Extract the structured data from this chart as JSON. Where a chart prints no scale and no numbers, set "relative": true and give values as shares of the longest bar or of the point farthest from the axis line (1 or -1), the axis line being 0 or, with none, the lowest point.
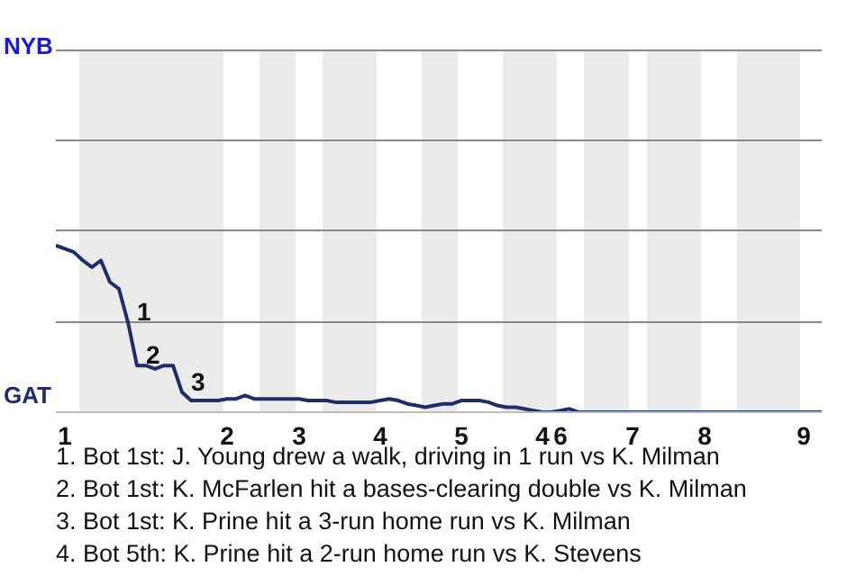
{
  "chart_data": {
    "type": "line",
    "relative": true,
    "categories": [
      null,
      "1",
      null,
      null,
      null,
      null,
      null,
      null,
      null,
      null,
      null,
      null,
      null,
      null,
      null,
      null,
      null,
      null,
      null,
      "2",
      null,
      null,
      null,
      null,
      null,
      null,
      null,
      "3",
      null,
      null,
      null,
      null,
      null,
      null,
      null,
      null,
      "4",
      null,
      null,
      null,
      null,
      null,
      null,
      null,
      null,
      "5",
      null,
      null,
      null,
      null,
      null,
      null,
      null,
      null,
      "4",
      null,
      "6",
      null,
      null,
      null,
      null,
      null,
      null,
      null,
      "7",
      null,
      null,
      null,
      null,
      null,
      null,
      null,
      "8",
      null,
      null,
      null,
      null,
      null,
      null,
      null,
      null,
      null,
      null,
      "9",
      null,
      null
    ],
    "series": [
      {
        "color": "#1f2d6b",
        "values": [
          1,
          0.98,
          0.96,
          0.91,
          0.87,
          0.91,
          0.78,
          0.74,
          0.54,
          0.28,
          0.28,
          0.26,
          0.28,
          0.28,
          0.12,
          0.07,
          0.07,
          0.07,
          0.07,
          0.08,
          0.08,
          0.1,
          0.08,
          0.08,
          0.08,
          0.08,
          0.08,
          0.08,
          0.07,
          0.07,
          0.07,
          0.06,
          0.06,
          0.06,
          0.06,
          0.06,
          0.07,
          0.08,
          0.07,
          0.05,
          0.04,
          0.03,
          0.04,
          0.05,
          0.05,
          0.07,
          0.07,
          0.07,
          0.06,
          0.04,
          0.03,
          0.03,
          0.02,
          0.01,
          0,
          0,
          0.01,
          0.02,
          0,
          0,
          0,
          0,
          0,
          0,
          0,
          0,
          0,
          0,
          0,
          0,
          0,
          0,
          0,
          0,
          0,
          0,
          0,
          0,
          0,
          0,
          0,
          0,
          0,
          0,
          0,
          0
        ]
      }
    ],
    "ref_lines": [
      {
        "axis": "y",
        "value": 0.54,
        "color": "#888888"
      },
      {
        "axis": "y",
        "value": 1.09,
        "color": "#888888"
      },
      {
        "axis": "y",
        "value": 1.63,
        "color": "#888888"
      },
      {
        "axis": "y",
        "value": 2.17,
        "color": "#888888"
      }
    ],
    "marker": "none",
    "annotations": [
      "NYB",
      "GAT",
      {
        "text": "1",
        "y": 0.54
      },
      {
        "text": "2",
        "y": 0.28
      },
      {
        "text": "3",
        "y": 0.12
      },
      "1. Bot 1st: J. Young drew a walk, driving in 1 run vs K. Milman",
      "2. Bot 1st: K. McFarlen hit a bases-clearing double vs K. Milman",
      "3. Bot 1st: K. Prine hit a 3-run home run vs K. Milman",
      "4. Bot 5th: K. Prine hit a 2-run home run vs K. Stevens"
    ]
  }
}
